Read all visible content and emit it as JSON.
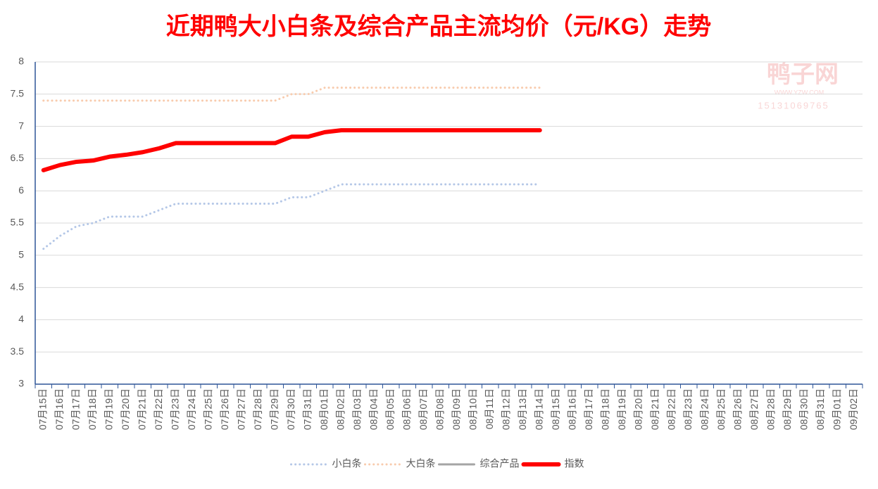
{
  "chart_data": {
    "type": "line",
    "title": "近期鸭大小白条及综合产品主流均价（元/KG）走势",
    "watermark": {
      "name": "鸭子网",
      "site": "WWW.YZW.COM",
      "phone": "15131069765"
    },
    "categories": [
      "07月15日",
      "07月16日",
      "07月17日",
      "07月18日",
      "07月19日",
      "07月20日",
      "07月21日",
      "07月22日",
      "07月23日",
      "07月24日",
      "07月25日",
      "07月26日",
      "07月27日",
      "07月28日",
      "07月29日",
      "07月30日",
      "07月31日",
      "08月01日",
      "08月02日",
      "08月03日",
      "08月04日",
      "08月05日",
      "08月06日",
      "08月07日",
      "08月08日",
      "08月09日",
      "08月10日",
      "08月11日",
      "08月12日",
      "08月13日",
      "08月14日",
      "08月15日",
      "08月16日",
      "08月17日",
      "08月18日",
      "08月19日",
      "08月20日",
      "08月21日",
      "08月22日",
      "08月23日",
      "08月24日",
      "08月25日",
      "08月26日",
      "08月27日",
      "08月28日",
      "08月29日",
      "08月30日",
      "08月31日",
      "09月01日",
      "09月02日"
    ],
    "series": [
      {
        "name": "小白条",
        "color": "#b4c7e7",
        "width": 3,
        "dash": "dotted",
        "values": [
          5.1,
          5.3,
          5.45,
          5.5,
          5.6,
          5.6,
          5.6,
          5.7,
          5.8,
          5.8,
          5.8,
          5.8,
          5.8,
          5.8,
          5.8,
          5.9,
          5.9,
          6.0,
          6.1,
          6.1,
          6.1,
          6.1,
          6.1,
          6.1,
          6.1,
          6.1,
          6.1,
          6.1,
          6.1,
          6.1,
          6.1,
          null,
          null,
          null,
          null,
          null,
          null,
          null,
          null,
          null,
          null,
          null,
          null,
          null,
          null,
          null,
          null,
          null,
          null,
          null
        ]
      },
      {
        "name": "大白条",
        "color": "#f8cbad",
        "width": 3,
        "dash": "dotted",
        "values": [
          7.4,
          7.4,
          7.4,
          7.4,
          7.4,
          7.4,
          7.4,
          7.4,
          7.4,
          7.4,
          7.4,
          7.4,
          7.4,
          7.4,
          7.4,
          7.5,
          7.5,
          7.6,
          7.6,
          7.6,
          7.6,
          7.6,
          7.6,
          7.6,
          7.6,
          7.6,
          7.6,
          7.6,
          7.6,
          7.6,
          7.6,
          null,
          null,
          null,
          null,
          null,
          null,
          null,
          null,
          null,
          null,
          null,
          null,
          null,
          null,
          null,
          null,
          null,
          null,
          null
        ]
      },
      {
        "name": "综合产品",
        "color": "#a5a5a5",
        "width": 3,
        "dash": "solid",
        "values": [
          null,
          null,
          null,
          null,
          null,
          null,
          null,
          null,
          null,
          null,
          null,
          null,
          null,
          null,
          null,
          null,
          null,
          null,
          null,
          null,
          null,
          null,
          null,
          null,
          null,
          null,
          null,
          null,
          null,
          null,
          null,
          null,
          null,
          null,
          null,
          null,
          null,
          null,
          null,
          null,
          null,
          null,
          null,
          null,
          null,
          null,
          null,
          null,
          null,
          null
        ]
      },
      {
        "name": "指数",
        "color": "#ff0000",
        "width": 6,
        "dash": "solid",
        "values": [
          6.32,
          6.4,
          6.45,
          6.47,
          6.53,
          6.56,
          6.6,
          6.66,
          6.74,
          6.74,
          6.74,
          6.74,
          6.74,
          6.74,
          6.74,
          6.84,
          6.84,
          6.91,
          6.94,
          6.94,
          6.94,
          6.94,
          6.94,
          6.94,
          6.94,
          6.94,
          6.94,
          6.94,
          6.94,
          6.94,
          6.94,
          null,
          null,
          null,
          null,
          null,
          null,
          null,
          null,
          null,
          null,
          null,
          null,
          null,
          null,
          null,
          null,
          null,
          null,
          null
        ]
      }
    ],
    "ylim": [
      3,
      8
    ],
    "yticks": [
      3,
      3.5,
      4,
      4.5,
      5,
      5.5,
      6,
      6.5,
      7,
      7.5,
      8
    ],
    "grid": true,
    "legend": "bottom"
  }
}
